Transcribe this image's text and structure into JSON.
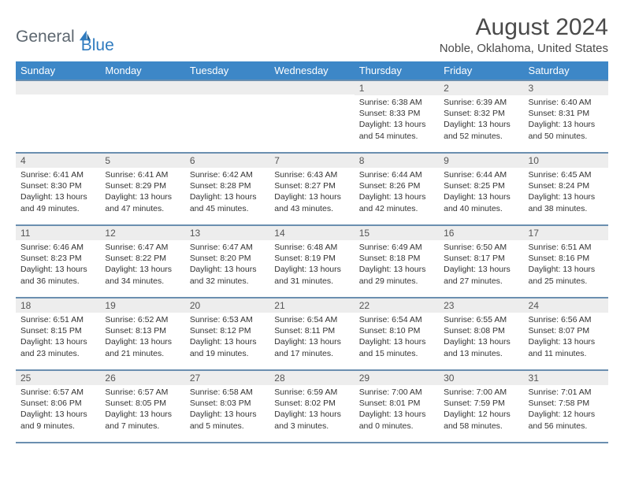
{
  "logo": {
    "part1": "General",
    "part2": "Blue"
  },
  "title": "August 2024",
  "location": "Noble, Oklahoma, United States",
  "weekdays": [
    "Sunday",
    "Monday",
    "Tuesday",
    "Wednesday",
    "Thursday",
    "Friday",
    "Saturday"
  ],
  "style": {
    "header_bg": "#3d87c7",
    "header_fg": "#ffffff",
    "row_border": "#6b8fb0",
    "daynum_bg": "#ededed",
    "logo_gray": "#5d6770",
    "logo_blue": "#2f7bbf"
  },
  "weeks": [
    [
      {
        "n": "",
        "sr": "",
        "ss": "",
        "dl": ""
      },
      {
        "n": "",
        "sr": "",
        "ss": "",
        "dl": ""
      },
      {
        "n": "",
        "sr": "",
        "ss": "",
        "dl": ""
      },
      {
        "n": "",
        "sr": "",
        "ss": "",
        "dl": ""
      },
      {
        "n": "1",
        "sr": "Sunrise: 6:38 AM",
        "ss": "Sunset: 8:33 PM",
        "dl": "Daylight: 13 hours and 54 minutes."
      },
      {
        "n": "2",
        "sr": "Sunrise: 6:39 AM",
        "ss": "Sunset: 8:32 PM",
        "dl": "Daylight: 13 hours and 52 minutes."
      },
      {
        "n": "3",
        "sr": "Sunrise: 6:40 AM",
        "ss": "Sunset: 8:31 PM",
        "dl": "Daylight: 13 hours and 50 minutes."
      }
    ],
    [
      {
        "n": "4",
        "sr": "Sunrise: 6:41 AM",
        "ss": "Sunset: 8:30 PM",
        "dl": "Daylight: 13 hours and 49 minutes."
      },
      {
        "n": "5",
        "sr": "Sunrise: 6:41 AM",
        "ss": "Sunset: 8:29 PM",
        "dl": "Daylight: 13 hours and 47 minutes."
      },
      {
        "n": "6",
        "sr": "Sunrise: 6:42 AM",
        "ss": "Sunset: 8:28 PM",
        "dl": "Daylight: 13 hours and 45 minutes."
      },
      {
        "n": "7",
        "sr": "Sunrise: 6:43 AM",
        "ss": "Sunset: 8:27 PM",
        "dl": "Daylight: 13 hours and 43 minutes."
      },
      {
        "n": "8",
        "sr": "Sunrise: 6:44 AM",
        "ss": "Sunset: 8:26 PM",
        "dl": "Daylight: 13 hours and 42 minutes."
      },
      {
        "n": "9",
        "sr": "Sunrise: 6:44 AM",
        "ss": "Sunset: 8:25 PM",
        "dl": "Daylight: 13 hours and 40 minutes."
      },
      {
        "n": "10",
        "sr": "Sunrise: 6:45 AM",
        "ss": "Sunset: 8:24 PM",
        "dl": "Daylight: 13 hours and 38 minutes."
      }
    ],
    [
      {
        "n": "11",
        "sr": "Sunrise: 6:46 AM",
        "ss": "Sunset: 8:23 PM",
        "dl": "Daylight: 13 hours and 36 minutes."
      },
      {
        "n": "12",
        "sr": "Sunrise: 6:47 AM",
        "ss": "Sunset: 8:22 PM",
        "dl": "Daylight: 13 hours and 34 minutes."
      },
      {
        "n": "13",
        "sr": "Sunrise: 6:47 AM",
        "ss": "Sunset: 8:20 PM",
        "dl": "Daylight: 13 hours and 32 minutes."
      },
      {
        "n": "14",
        "sr": "Sunrise: 6:48 AM",
        "ss": "Sunset: 8:19 PM",
        "dl": "Daylight: 13 hours and 31 minutes."
      },
      {
        "n": "15",
        "sr": "Sunrise: 6:49 AM",
        "ss": "Sunset: 8:18 PM",
        "dl": "Daylight: 13 hours and 29 minutes."
      },
      {
        "n": "16",
        "sr": "Sunrise: 6:50 AM",
        "ss": "Sunset: 8:17 PM",
        "dl": "Daylight: 13 hours and 27 minutes."
      },
      {
        "n": "17",
        "sr": "Sunrise: 6:51 AM",
        "ss": "Sunset: 8:16 PM",
        "dl": "Daylight: 13 hours and 25 minutes."
      }
    ],
    [
      {
        "n": "18",
        "sr": "Sunrise: 6:51 AM",
        "ss": "Sunset: 8:15 PM",
        "dl": "Daylight: 13 hours and 23 minutes."
      },
      {
        "n": "19",
        "sr": "Sunrise: 6:52 AM",
        "ss": "Sunset: 8:13 PM",
        "dl": "Daylight: 13 hours and 21 minutes."
      },
      {
        "n": "20",
        "sr": "Sunrise: 6:53 AM",
        "ss": "Sunset: 8:12 PM",
        "dl": "Daylight: 13 hours and 19 minutes."
      },
      {
        "n": "21",
        "sr": "Sunrise: 6:54 AM",
        "ss": "Sunset: 8:11 PM",
        "dl": "Daylight: 13 hours and 17 minutes."
      },
      {
        "n": "22",
        "sr": "Sunrise: 6:54 AM",
        "ss": "Sunset: 8:10 PM",
        "dl": "Daylight: 13 hours and 15 minutes."
      },
      {
        "n": "23",
        "sr": "Sunrise: 6:55 AM",
        "ss": "Sunset: 8:08 PM",
        "dl": "Daylight: 13 hours and 13 minutes."
      },
      {
        "n": "24",
        "sr": "Sunrise: 6:56 AM",
        "ss": "Sunset: 8:07 PM",
        "dl": "Daylight: 13 hours and 11 minutes."
      }
    ],
    [
      {
        "n": "25",
        "sr": "Sunrise: 6:57 AM",
        "ss": "Sunset: 8:06 PM",
        "dl": "Daylight: 13 hours and 9 minutes."
      },
      {
        "n": "26",
        "sr": "Sunrise: 6:57 AM",
        "ss": "Sunset: 8:05 PM",
        "dl": "Daylight: 13 hours and 7 minutes."
      },
      {
        "n": "27",
        "sr": "Sunrise: 6:58 AM",
        "ss": "Sunset: 8:03 PM",
        "dl": "Daylight: 13 hours and 5 minutes."
      },
      {
        "n": "28",
        "sr": "Sunrise: 6:59 AM",
        "ss": "Sunset: 8:02 PM",
        "dl": "Daylight: 13 hours and 3 minutes."
      },
      {
        "n": "29",
        "sr": "Sunrise: 7:00 AM",
        "ss": "Sunset: 8:01 PM",
        "dl": "Daylight: 13 hours and 0 minutes."
      },
      {
        "n": "30",
        "sr": "Sunrise: 7:00 AM",
        "ss": "Sunset: 7:59 PM",
        "dl": "Daylight: 12 hours and 58 minutes."
      },
      {
        "n": "31",
        "sr": "Sunrise: 7:01 AM",
        "ss": "Sunset: 7:58 PM",
        "dl": "Daylight: 12 hours and 56 minutes."
      }
    ]
  ]
}
